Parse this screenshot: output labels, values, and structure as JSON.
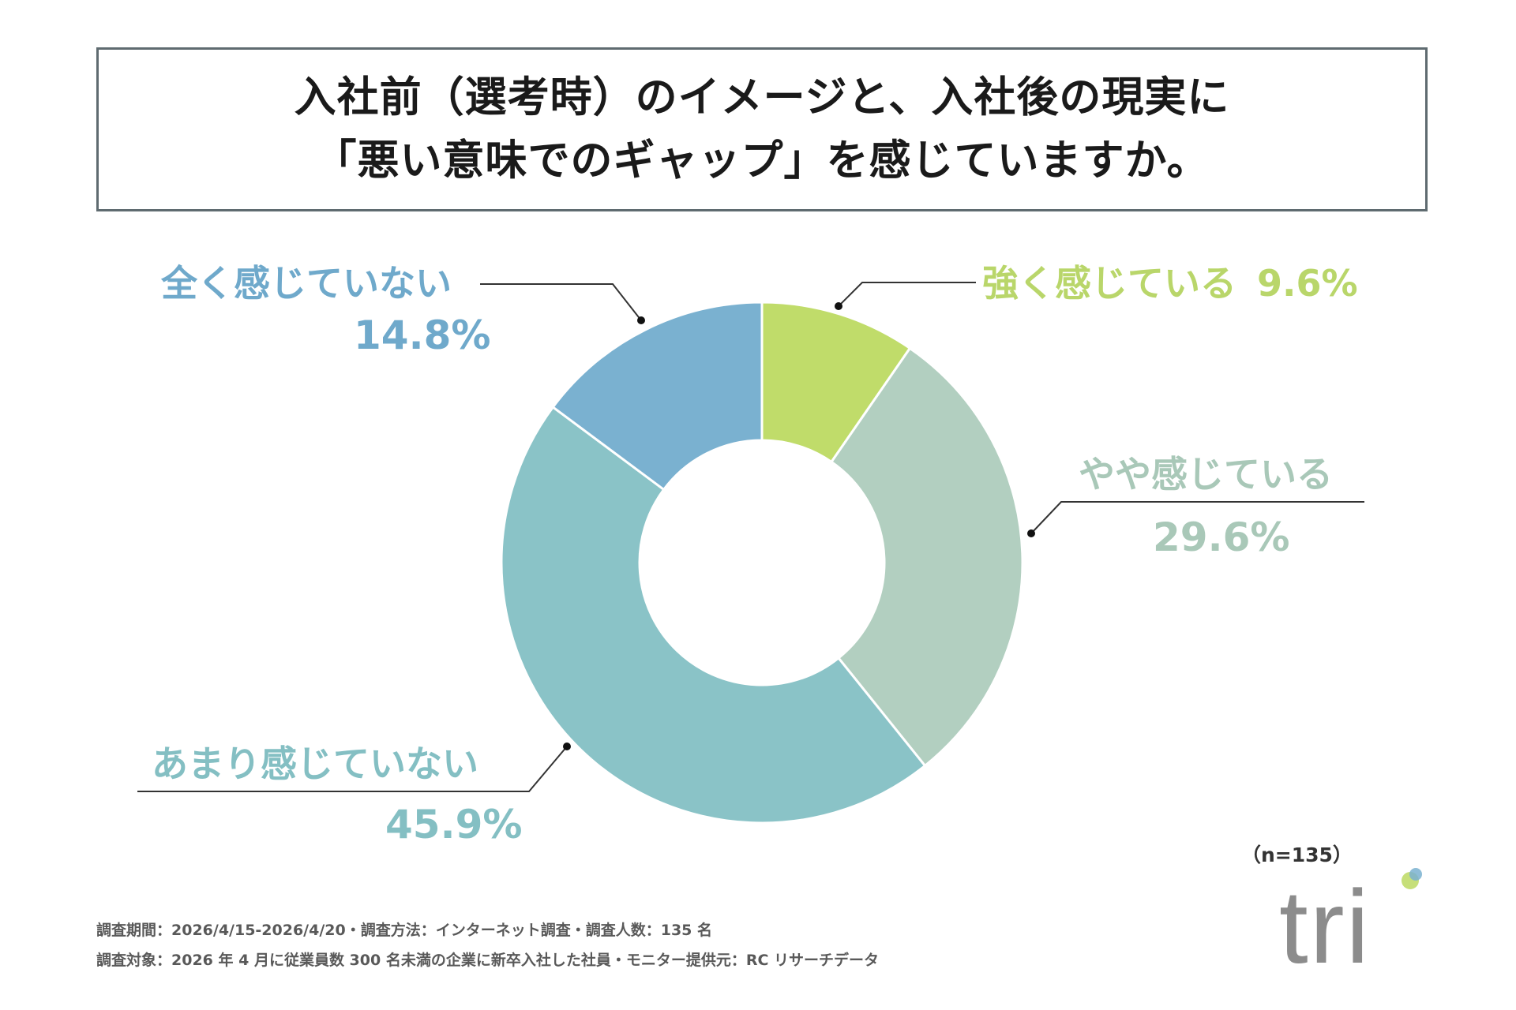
{
  "title": {
    "line1": "入社前（選考時）のイメージと、入社後の現実に",
    "line2": "「悪い意味でのギャップ」を感じていますか。"
  },
  "chart_data": {
    "type": "pie",
    "donut": true,
    "categories": [
      "強く感じている",
      "やや感じている",
      "あまり感じていない",
      "全く感じていない"
    ],
    "values": [
      9.6,
      29.6,
      45.9,
      14.8
    ],
    "value_labels": [
      "9.6%",
      "29.6%",
      "45.9%",
      "14.8%"
    ],
    "colors": [
      "#c0dc6a",
      "#b2cfc0",
      "#8ac3c7",
      "#7ab1d0"
    ],
    "sample_size": "（n=135）"
  },
  "labels": {
    "strong": {
      "name": "強く感じている",
      "value": "9.6%"
    },
    "somewhat": {
      "name": "やや感じている",
      "value": "29.6%"
    },
    "notmuch": {
      "name": "あまり感じていない",
      "value": "45.9%"
    },
    "notatall": {
      "name": "全く感じていない",
      "value": "14.8%"
    }
  },
  "footer": {
    "line1": "調査期間：2026/4/15-2026/4/20・調査方法：インターネット調査・調査人数：135 名",
    "line2": "調査対象：2026 年 4 月に従業員数 300 名未満の企業に新卒入社した社員・モニター提供元：RC リサーチデータ"
  },
  "logo": {
    "text": "tri",
    "colors": [
      "#c0dc6a",
      "#7ab1d0",
      "#8ac3c7"
    ]
  }
}
